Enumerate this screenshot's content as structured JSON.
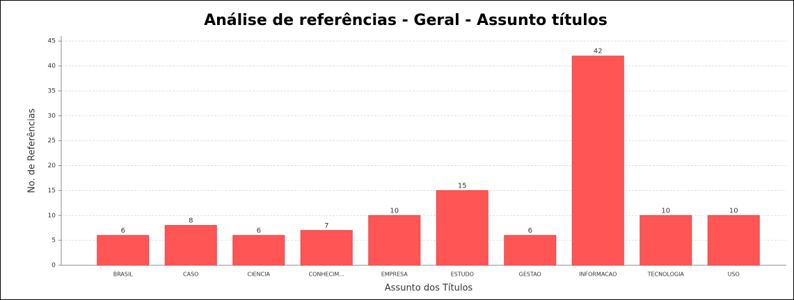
{
  "chart_data": {
    "type": "bar",
    "title": "Análise de referências - Geral - Assunto títulos",
    "x_label": "Assunto dos Títulos",
    "y_label": "No. de Referências",
    "categories": [
      "BRASIL",
      "CASO",
      "CIENCIA",
      "CONHECIM...",
      "EMPRESA",
      "ESTUDO",
      "GESTAO",
      "INFORMACAO",
      "TECNOLOGIA",
      "USO"
    ],
    "values": [
      6,
      8,
      6,
      7,
      10,
      15,
      6,
      42,
      10,
      10
    ],
    "color": "#ff5555",
    "ylim": [
      0,
      46
    ],
    "yticks": [
      0,
      5,
      10,
      15,
      20,
      25,
      30,
      35,
      40,
      45
    ],
    "grid": true
  }
}
